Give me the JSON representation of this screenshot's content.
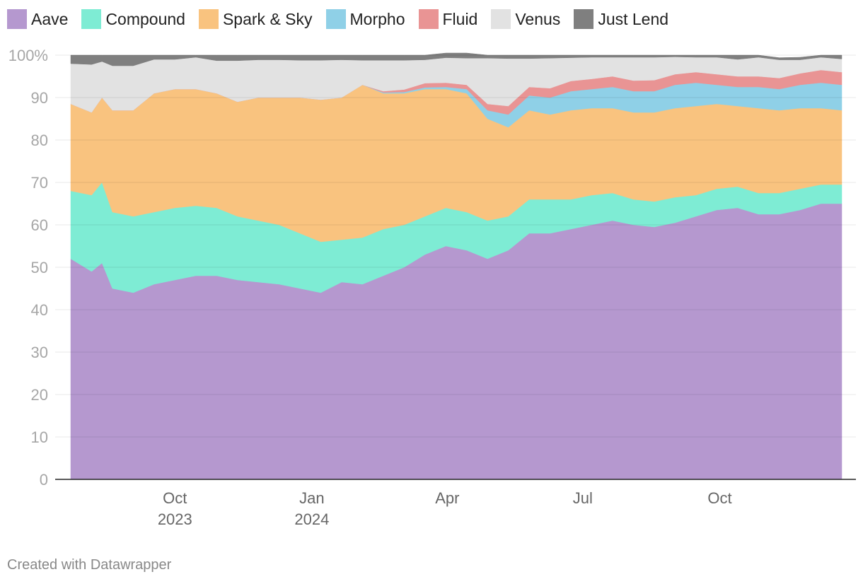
{
  "chart_data": {
    "type": "area",
    "stacked": true,
    "title": "",
    "xlabel": "",
    "ylabel": "",
    "ylim": [
      0,
      100
    ],
    "y_ticks": [
      "100%",
      "90",
      "80",
      "70",
      "60",
      "50",
      "40",
      "30",
      "20",
      "10",
      "0"
    ],
    "x_ticks": [
      {
        "date": "2023-10-01",
        "line1": "Oct",
        "line2": "2023"
      },
      {
        "date": "2024-01-01",
        "line1": "Jan",
        "line2": "2024"
      },
      {
        "date": "2024-04-01",
        "line1": "Apr",
        "line2": ""
      },
      {
        "date": "2024-07-01",
        "line1": "Jul",
        "line2": ""
      },
      {
        "date": "2024-10-01",
        "line1": "Oct",
        "line2": ""
      }
    ],
    "x_range": [
      "2023-07-15",
      "2024-12-31"
    ],
    "grid": "horizontal",
    "legend_position": "top-left",
    "x": [
      "2023-07-23",
      "2023-08-06",
      "2023-08-13",
      "2023-08-20",
      "2023-09-03",
      "2023-09-17",
      "2023-10-01",
      "2023-10-15",
      "2023-10-29",
      "2023-11-12",
      "2023-11-26",
      "2023-12-10",
      "2023-12-24",
      "2024-01-07",
      "2024-01-21",
      "2024-02-04",
      "2024-02-18",
      "2024-03-03",
      "2024-03-17",
      "2024-03-31",
      "2024-04-14",
      "2024-04-28",
      "2024-05-12",
      "2024-05-26",
      "2024-06-09",
      "2024-06-23",
      "2024-07-07",
      "2024-07-21",
      "2024-08-04",
      "2024-08-18",
      "2024-09-01",
      "2024-09-15",
      "2024-09-29",
      "2024-10-13",
      "2024-10-27",
      "2024-11-10",
      "2024-11-24",
      "2024-12-08",
      "2024-12-22"
    ],
    "series": [
      {
        "name": "Aave",
        "color": "#b598cf",
        "values": [
          52,
          49,
          51,
          45,
          44,
          46,
          47,
          48,
          48,
          47,
          46.5,
          46,
          45,
          44,
          46.5,
          46,
          48,
          50,
          53,
          55,
          54,
          52,
          54,
          58,
          58,
          59,
          60,
          61,
          60,
          59.5,
          60.5,
          62,
          63.5,
          64,
          62.5,
          62.5,
          63.5,
          65,
          65
        ]
      },
      {
        "name": "Compound",
        "color": "#7eecd4",
        "values": [
          16,
          18,
          19,
          18,
          18,
          17,
          17,
          16.5,
          16,
          15,
          14.5,
          14,
          13,
          12,
          10,
          11,
          11,
          10,
          9,
          9,
          9,
          9,
          8,
          8,
          8,
          7,
          7,
          6.5,
          6,
          6,
          6,
          5,
          5,
          5,
          5,
          5,
          5,
          4.5,
          4.5
        ]
      },
      {
        "name": "Spark & Sky",
        "color": "#f9c37f",
        "values": [
          20.5,
          19.5,
          20,
          24,
          25,
          28,
          28,
          27.5,
          27,
          27,
          29,
          30,
          32,
          33.5,
          33.5,
          36,
          32,
          31,
          30,
          28,
          28,
          24,
          21,
          21,
          20,
          21,
          20.5,
          20,
          20.5,
          21,
          21,
          21,
          20,
          19,
          20,
          19.5,
          19,
          18,
          17.5
        ]
      },
      {
        "name": "Morpho",
        "color": "#8fd0e7",
        "values": [
          0,
          0,
          0,
          0,
          0,
          0,
          0,
          0,
          0,
          0,
          0,
          0,
          0,
          0,
          0,
          0,
          0.2,
          0.3,
          0.4,
          0.5,
          1,
          2,
          3,
          3.5,
          4,
          4.5,
          4.5,
          5,
          5,
          5,
          5.5,
          5.5,
          4.5,
          4.5,
          5,
          5,
          5.5,
          6,
          6
        ]
      },
      {
        "name": "Fluid",
        "color": "#e99494",
        "values": [
          0,
          0,
          0,
          0,
          0,
          0,
          0,
          0,
          0,
          0,
          0,
          0,
          0,
          0,
          0,
          0,
          0.3,
          0.6,
          1,
          1,
          1,
          1.5,
          2,
          2,
          2.2,
          2.4,
          2.4,
          2.5,
          2.5,
          2.6,
          2.5,
          2.5,
          2.5,
          2.5,
          2.5,
          2.6,
          2.7,
          3,
          3
        ]
      },
      {
        "name": "Venus",
        "color": "#e2e2e2",
        "values": [
          9.5,
          11.3,
          8.5,
          10.5,
          10.5,
          8,
          7,
          7.5,
          7.7,
          9.7,
          8.9,
          8.9,
          8.8,
          9.3,
          8.9,
          5.8,
          7.3,
          6.9,
          5.5,
          5.9,
          6.3,
          10.8,
          11.2,
          6.7,
          7.1,
          5.5,
          5.1,
          4.5,
          5.5,
          5.4,
          4.1,
          3.5,
          4,
          4,
          4.5,
          4.3,
          3.2,
          3,
          3.1
        ]
      },
      {
        "name": "Just Lend",
        "color": "#7f7f7f",
        "values": [
          2,
          2.2,
          1.5,
          2.5,
          2.5,
          1,
          1,
          0.5,
          1.3,
          1.3,
          1.1,
          1.1,
          1.2,
          1.2,
          1.1,
          1.2,
          1.2,
          1.2,
          1.1,
          1.1,
          1.2,
          0.7,
          0.8,
          0.8,
          0.7,
          0.6,
          0.5,
          0.5,
          0.5,
          0.5,
          0.4,
          0.5,
          0.5,
          1,
          0.5,
          0.5,
          0.6,
          0.5,
          0.9
        ]
      }
    ]
  },
  "footer": {
    "text": "Created with Datawrapper"
  }
}
